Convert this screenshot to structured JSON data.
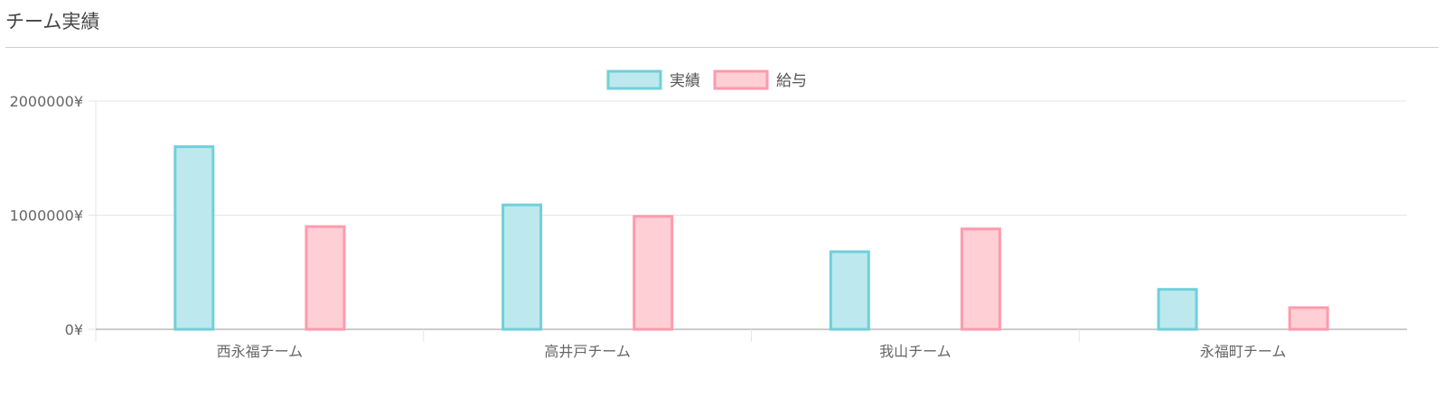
{
  "page": {
    "title": "チーム実績"
  },
  "colors": {
    "series1_fill": "#bde9ee",
    "series1_stroke": "#6fd0da",
    "series2_fill": "#ffcfd6",
    "series2_stroke": "#ff9aac",
    "grid": "#e6e6e6",
    "axis": "#bbbbbb"
  },
  "chart_data": {
    "type": "bar",
    "title": "",
    "categories": [
      "西永福チーム",
      "高井戸チーム",
      "我山チーム",
      "永福町チーム"
    ],
    "series": [
      {
        "name": "実績",
        "values": [
          1600000,
          1090000,
          680000,
          350000
        ]
      },
      {
        "name": "給与",
        "values": [
          900000,
          990000,
          880000,
          190000
        ]
      }
    ],
    "ylim": [
      0,
      2000000
    ],
    "yticks": [
      {
        "value": 0,
        "label": "0¥"
      },
      {
        "value": 1000000,
        "label": "1000000¥"
      },
      {
        "value": 2000000,
        "label": "2000000¥"
      }
    ],
    "grid": true,
    "legend": "top-center"
  }
}
